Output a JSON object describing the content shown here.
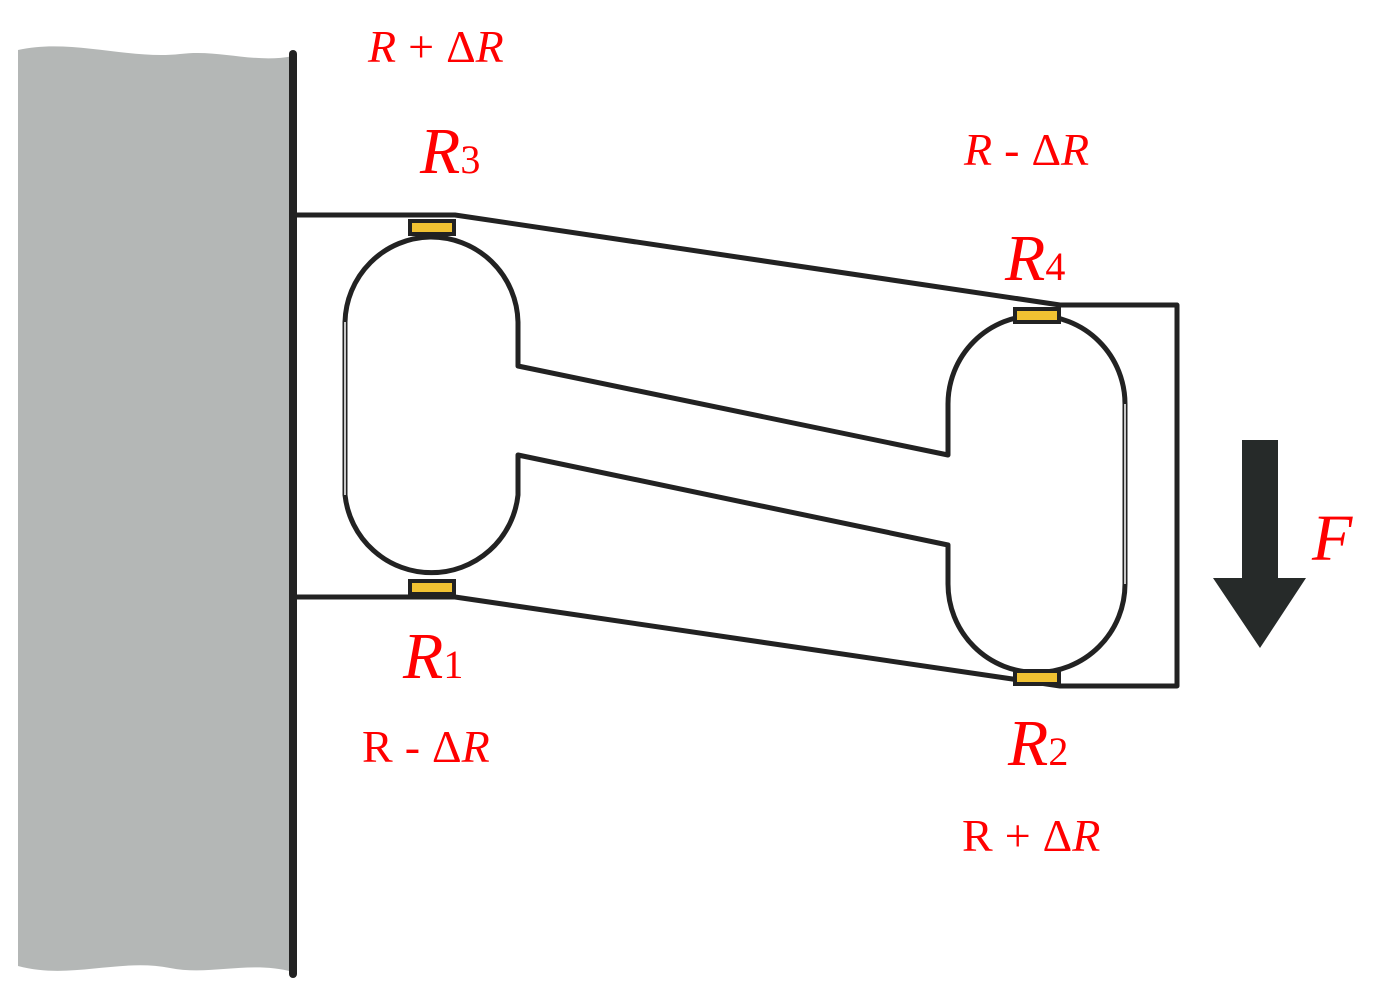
{
  "diagram": {
    "gauges": {
      "r3": {
        "letter": "R",
        "index": "3",
        "change": {
          "base": "R",
          "op": "+",
          "delta": "Δ",
          "var": "R"
        }
      },
      "r4": {
        "letter": "R",
        "index": "4",
        "change": {
          "base": "R",
          "op": "-",
          "delta": "Δ",
          "var": "R"
        }
      },
      "r1": {
        "letter": "R",
        "index": "1",
        "change": {
          "base": "R",
          "op": "-",
          "delta": "Δ",
          "var": "R"
        }
      },
      "r2": {
        "letter": "R",
        "index": "2",
        "change": {
          "base": "R",
          "op": "+",
          "delta": "Δ",
          "var": "R"
        }
      }
    },
    "force": {
      "label": "F"
    },
    "colors": {
      "label": "#ff0000",
      "wall": "#b4b7b6",
      "gauge": "#f1c232",
      "outline": "#222222",
      "arrow": "#262a29"
    }
  }
}
